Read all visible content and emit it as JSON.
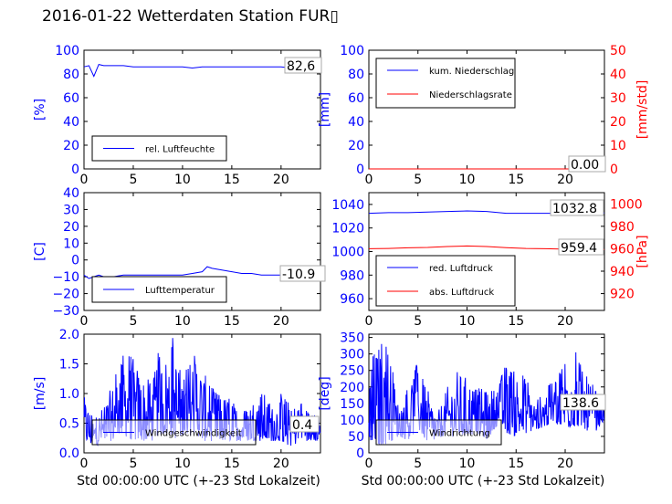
{
  "page": {
    "title": "2016-01-22 Wetterdaten Station FUR▯"
  },
  "colors": {
    "blue": "#0000ff",
    "red": "#ff0000",
    "light_blue": "#8888ff"
  },
  "chart_data": [
    {
      "id": "humidity",
      "type": "line",
      "x": [
        0,
        0.5,
        1,
        1.5,
        2,
        3,
        4,
        5,
        6,
        7,
        8,
        9,
        10,
        11,
        12,
        13,
        14,
        15,
        16,
        17,
        18,
        19,
        20,
        21,
        22,
        23,
        24
      ],
      "series": [
        {
          "name": "rel. Luftfeuchte",
          "color": "#0000ff",
          "values": [
            86,
            87,
            78,
            88,
            87,
            87,
            87,
            86,
            86,
            86,
            86,
            86,
            86,
            85,
            86,
            86,
            86,
            86,
            86,
            86,
            86,
            86,
            86,
            85,
            84,
            83,
            82.6
          ]
        }
      ],
      "xlim": [
        0,
        24
      ],
      "ylim": [
        0,
        100
      ],
      "xticks": [
        "0",
        "5",
        "10",
        "15",
        "20"
      ],
      "xtick_values": [
        0,
        5,
        10,
        15,
        20
      ],
      "yticks": [
        "0",
        "20",
        "40",
        "60",
        "80",
        "100"
      ],
      "ytick_values": [
        0,
        20,
        40,
        60,
        80,
        100
      ],
      "ylabel": "[%]",
      "last_value_label": "82,6",
      "legend_position": "lower-left"
    },
    {
      "id": "precipitation",
      "type": "line",
      "x": [
        0,
        24
      ],
      "series": [
        {
          "name": "kum. Niederschlag",
          "color": "#0000ff",
          "values": [
            0,
            0
          ]
        },
        {
          "name": "Niederschlagsrate",
          "color": "#ff0000",
          "values": [
            0,
            0
          ],
          "axis": "right"
        }
      ],
      "xlim": [
        0,
        24
      ],
      "ylim": [
        0,
        100
      ],
      "ylim_right": [
        0,
        50
      ],
      "xticks": [
        "0",
        "5",
        "10",
        "15",
        "20"
      ],
      "xtick_values": [
        0,
        5,
        10,
        15,
        20
      ],
      "yticks": [
        "0",
        "20",
        "40",
        "60",
        "80",
        "100"
      ],
      "ytick_values": [
        0,
        20,
        40,
        60,
        80,
        100
      ],
      "yticks_right": [
        "0",
        "10",
        "20",
        "30",
        "40",
        "50"
      ],
      "ytick_values_right": [
        0,
        10,
        20,
        30,
        40,
        50
      ],
      "ylabel": "[mm]",
      "ylabel_right": "[mm/std]",
      "last_value_label": "0.00",
      "legend_position": "upper-left"
    },
    {
      "id": "temperature",
      "type": "line",
      "x": [
        0,
        0.5,
        1,
        1.5,
        2,
        3,
        4,
        5,
        6,
        7,
        8,
        9,
        10,
        11,
        12,
        12.5,
        13,
        14,
        15,
        16,
        17,
        18,
        19,
        20,
        21,
        22,
        23,
        24
      ],
      "series": [
        {
          "name": "Lufttemperatur",
          "color": "#0000ff",
          "values": [
            -9,
            -11,
            -10,
            -9,
            -10,
            -10,
            -9,
            -9,
            -9,
            -9,
            -9,
            -9,
            -9,
            -8,
            -7,
            -4,
            -5,
            -6,
            -7,
            -8,
            -8,
            -9,
            -9,
            -9,
            -10,
            -11,
            -11,
            -10.9
          ]
        }
      ],
      "xlim": [
        0,
        24
      ],
      "ylim": [
        -30,
        40
      ],
      "xticks": [
        "0",
        "5",
        "10",
        "15",
        "20"
      ],
      "xtick_values": [
        0,
        5,
        10,
        15,
        20
      ],
      "yticks": [
        "−30",
        "−20",
        "−10",
        "0",
        "10",
        "20",
        "30",
        "40"
      ],
      "ytick_values": [
        -30,
        -20,
        -10,
        0,
        10,
        20,
        30,
        40
      ],
      "ylabel": "[C]",
      "last_value_label": "-10.9",
      "legend_position": "lower-left"
    },
    {
      "id": "pressure",
      "type": "line",
      "x": [
        0,
        2,
        4,
        6,
        8,
        10,
        12,
        14,
        16,
        18,
        20,
        22,
        24
      ],
      "series": [
        {
          "name": "red. Luftdruck",
          "color": "#0000ff",
          "values": [
            1032.5,
            1033,
            1033,
            1033.5,
            1034,
            1034.5,
            1034,
            1032.5,
            1032.5,
            1032.5,
            1032.5,
            1033,
            1032.8
          ]
        },
        {
          "name": "abs. Luftdruck",
          "color": "#ff0000",
          "axis": "right",
          "values": [
            960,
            960.3,
            960.8,
            961.2,
            962,
            962.5,
            962,
            961,
            960.3,
            960,
            959.6,
            959.5,
            959.4
          ]
        }
      ],
      "xlim": [
        0,
        24
      ],
      "ylim": [
        950,
        1050
      ],
      "ylim_right": [
        905,
        1010
      ],
      "xticks": [
        "0",
        "5",
        "10",
        "15",
        "20"
      ],
      "xtick_values": [
        0,
        5,
        10,
        15,
        20
      ],
      "yticks": [
        "960",
        "980",
        "1000",
        "1020",
        "1040"
      ],
      "ytick_values": [
        960,
        980,
        1000,
        1020,
        1040
      ],
      "yticks_right": [
        "920",
        "940",
        "960",
        "980",
        "1000"
      ],
      "ytick_values_right": [
        920,
        940,
        960,
        980,
        1000
      ],
      "ylabel_right": "[hPa]",
      "last_value_label": "1032.8",
      "last_value_label_right": "959.4",
      "legend_position": "lower-left"
    },
    {
      "id": "windspeed",
      "type": "line",
      "xlim": [
        0,
        24
      ],
      "ylim": [
        0,
        2.0
      ],
      "xticks": [
        "0",
        "5",
        "10",
        "15",
        "20"
      ],
      "xtick_values": [
        0,
        5,
        10,
        15,
        20
      ],
      "yticks": [
        "0.0",
        "0.5",
        "1.0",
        "1.5",
        "2.0"
      ],
      "ytick_values": [
        0,
        0.5,
        1.0,
        1.5,
        2.0
      ],
      "ylabel": "[m/s]",
      "xlabel": "Std 00:00:00 UTC (+-23 Std Lokalzeit)",
      "series": [
        {
          "name": "Windgeschwindigkeit",
          "color": "#0000ff"
        }
      ],
      "last_value_label": "0.4",
      "legend_position": "lower-center",
      "envelope": {
        "x": [
          0,
          1,
          2,
          3,
          3.5,
          4,
          5,
          6,
          7,
          7.5,
          8,
          8.5,
          9,
          9.5,
          10,
          11,
          11.5,
          12,
          13,
          14,
          15,
          16,
          17,
          18,
          19,
          20,
          21,
          22,
          23,
          24
        ],
        "hi": [
          1.0,
          0.6,
          0.8,
          1.2,
          1.6,
          1.7,
          1.6,
          1.3,
          1.2,
          1.7,
          1.6,
          1.7,
          2.0,
          1.5,
          1.3,
          1.7,
          1.8,
          1.4,
          1.1,
          1.0,
          0.9,
          0.7,
          0.9,
          1.1,
          0.8,
          1.0,
          0.8,
          0.9,
          0.7,
          0.6
        ],
        "lo": [
          0.2,
          0.1,
          0.2,
          0.2,
          0.3,
          0.3,
          0.2,
          0.2,
          0.2,
          0.3,
          0.3,
          0.3,
          0.3,
          0.2,
          0.3,
          0.3,
          0.3,
          0.2,
          0.2,
          0.2,
          0.2,
          0.2,
          0.2,
          0.2,
          0.2,
          0.2,
          0.1,
          0.2,
          0.2,
          0.2
        ]
      }
    },
    {
      "id": "winddirection",
      "type": "line",
      "xlim": [
        0,
        24
      ],
      "ylim": [
        0,
        360
      ],
      "xticks": [
        "0",
        "5",
        "10",
        "15",
        "20"
      ],
      "xtick_values": [
        0,
        5,
        10,
        15,
        20
      ],
      "yticks": [
        "0",
        "50",
        "100",
        "150",
        "200",
        "250",
        "300",
        "350"
      ],
      "ytick_values": [
        0,
        50,
        100,
        150,
        200,
        250,
        300,
        350
      ],
      "ylabel": "[deg]",
      "xlabel": "Std 00:00:00 UTC (+-23 Std Lokalzeit)",
      "series": [
        {
          "name": "Windrichtung",
          "color": "#0000ff"
        }
      ],
      "last_value_label": "138.6",
      "legend_position": "lower-center",
      "envelope": {
        "x": [
          0,
          1,
          2,
          3,
          4,
          5,
          6,
          7,
          8,
          9,
          10,
          11,
          12,
          13,
          14,
          15,
          16,
          17,
          18,
          19,
          20,
          21,
          22,
          23,
          24
        ],
        "hi": [
          300,
          330,
          340,
          150,
          200,
          280,
          190,
          120,
          200,
          250,
          230,
          200,
          190,
          200,
          280,
          250,
          230,
          160,
          190,
          240,
          320,
          320,
          240,
          200,
          140
        ],
        "lo": [
          40,
          20,
          30,
          50,
          40,
          70,
          30,
          40,
          60,
          40,
          50,
          60,
          40,
          80,
          60,
          50,
          60,
          70,
          80,
          90,
          70,
          80,
          70,
          60,
          100
        ]
      }
    }
  ]
}
